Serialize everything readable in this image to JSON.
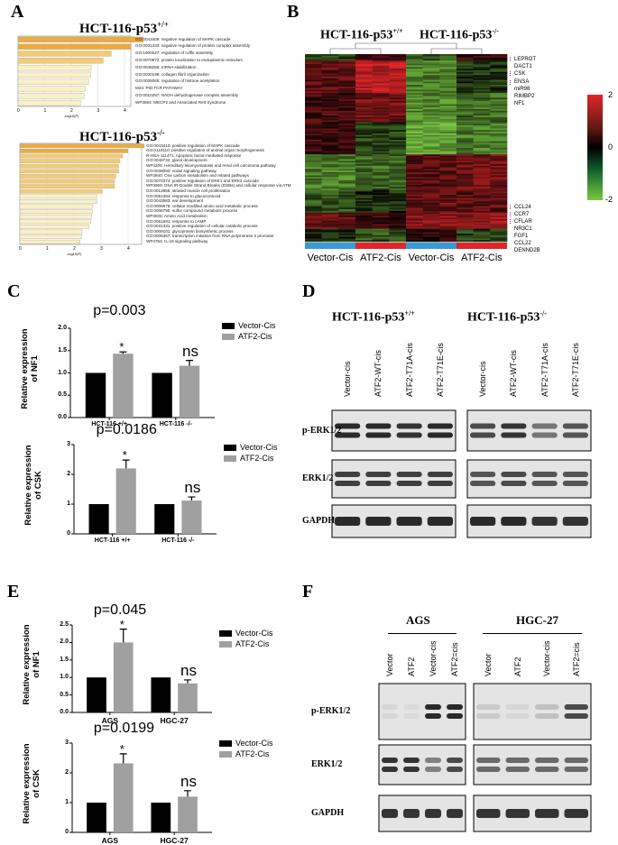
{
  "panel_labels": {
    "a": "A",
    "b": "B",
    "c": "C",
    "d": "D",
    "e": "E",
    "f": "F"
  },
  "panel_a": {
    "top": {
      "title": "HCT-116-p53",
      "title_sup": "+/+",
      "xlabel": "-log10(P)",
      "ticks": [
        "0",
        "1",
        "2",
        "3",
        "4"
      ],
      "terms": [
        {
          "label": "GO:0043409: negative regulation of MAPK cascade",
          "value": 4.7
        },
        {
          "label": "GO:0031333: negative regulation of protein complex assembly",
          "value": 4.25
        },
        {
          "label": "GO:1900027: regulation of ruffle assembly",
          "value": 3.5
        },
        {
          "label": "GO:0070972: protein localization to endoplasmic reticulum",
          "value": 3.2
        },
        {
          "label": "GO:0048255: mRNA stabilization",
          "value": 2.75
        },
        {
          "label": "GO:0030199: collagen fibril organization",
          "value": 2.72
        },
        {
          "label": "GO:0035065: regulation of histone acetylation",
          "value": 2.65
        },
        {
          "label": "M34: PID TCR PATHWAY",
          "value": 2.52
        },
        {
          "label": "GO:0010257: NADH dehydrogenase complex assembly",
          "value": 2.48
        },
        {
          "label": "WP3584: MECP2 and Associated Rett Syndrome",
          "value": 2.35
        }
      ]
    },
    "bottom": {
      "title": "HCT-116-p53",
      "title_sup": "-/-",
      "xlabel": "-log10(P)",
      "ticks": [
        "0",
        "1",
        "2",
        "3",
        "4"
      ],
      "terms": [
        {
          "label": "GO:0043410: positive regulation of MAPK cascade",
          "value": 4.6
        },
        {
          "label": "GO:0110110: positive regulation of animal organ morphogenesis",
          "value": 4.0
        },
        {
          "label": "R-HSA-111471: Apoptotic factor-mediated response",
          "value": 3.8
        },
        {
          "label": "GO:0048732: gland development",
          "value": 3.7
        },
        {
          "label": "WP4206: Hereditary leiomyomatosis and renal cell carcinoma pathway",
          "value": 3.65
        },
        {
          "label": "GO:0038092: nodal signaling pathway",
          "value": 3.65
        },
        {
          "label": "WP3940: One carbon metabolism and related pathways",
          "value": 3.55
        },
        {
          "label": "GO:0070374: positive regulation of ERK1 and ERK2 cascade",
          "value": 3.5
        },
        {
          "label": "WP3959: DNA IR-Double Strand Breaks (DSBs) and cellular response via ATM",
          "value": 3.5
        },
        {
          "label": "GO:0014855: striated muscle cell proliferation",
          "value": 3.05
        },
        {
          "label": "GO:0051384: response to glucocorticoid",
          "value": 2.85
        },
        {
          "label": "GO:0043583: ear development",
          "value": 2.85
        },
        {
          "label": "GO:0006575: cellular modified amino acid metabolic process",
          "value": 2.7
        },
        {
          "label": "GO:0006790: sulfur compound metabolic process",
          "value": 2.68
        },
        {
          "label": "WP3925: Amino Acid metabolism",
          "value": 2.65
        },
        {
          "label": "GO:0051591: response to cAMP",
          "value": 2.62
        },
        {
          "label": "GO:0031331: positive regulation of cellular catabolic process",
          "value": 2.55
        },
        {
          "label": "GO:0009101: glycoprotein biosynthetic process",
          "value": 2.3
        },
        {
          "label": "GO:0006367: transcription initiation from RNA polymerase II promoter",
          "value": 2.28
        },
        {
          "label": "WP4754: IL-18 signaling pathway",
          "value": 2.22
        }
      ]
    }
  },
  "panel_b": {
    "title_left": "HCT-116-p53",
    "title_left_sup": "+/+",
    "title_right": "HCT-116-p53",
    "title_right_sup": "-/-",
    "group_labels": [
      "Vector-Cis",
      "ATF2-Cis",
      "Vector-Cis",
      "ATF2-Cis"
    ],
    "group_colors": [
      "#3a9ad9",
      "#e0262a",
      "#3a9ad9",
      "#e0262a"
    ],
    "genes_top": [
      "LEPROT",
      "DACT1",
      "CSK",
      "ENSA",
      "miR98",
      "RIMBP2",
      "NF1"
    ],
    "genes_bottom": [
      "CCL24",
      "CCR7",
      "CFLAR",
      "NR3C1",
      "FGF1",
      "CCL22",
      "DENND2B"
    ],
    "colorbar_ticks": [
      "2",
      "0",
      "-2"
    ],
    "colors": {
      "high": "#e0262a",
      "mid": "#000000",
      "low": "#7ac943"
    },
    "row_blocks": [
      {
        "rows": 4,
        "values": [
          -0.6,
          0.6,
          -0.8,
          0.4
        ]
      },
      {
        "rows": 20,
        "values": [
          0.8,
          1.6,
          -1.2,
          -0.5
        ]
      },
      {
        "rows": 18,
        "values": [
          0.6,
          1.0,
          -1.3,
          -1.0
        ]
      },
      {
        "rows": 20,
        "values": [
          0.5,
          -0.6,
          -1.6,
          -1.2
        ]
      },
      {
        "rows": 22,
        "values": [
          -1.2,
          -1.0,
          0.8,
          1.0
        ]
      },
      {
        "rows": 14,
        "values": [
          -0.8,
          -0.4,
          0.9,
          0.8
        ]
      },
      {
        "rows": 10,
        "values": [
          0.9,
          0.5,
          1.2,
          1.3
        ]
      },
      {
        "rows": 8,
        "values": [
          -0.3,
          -0.8,
          0.3,
          -0.6
        ]
      }
    ]
  },
  "panel_c": {
    "legend": [
      "Vector-Cis",
      "ATF2-Cis"
    ],
    "charts": [
      {
        "ylabel_1": "Relative expression",
        "ylabel_2": "of NF1",
        "categories": [
          "HCT-116 +/+",
          "HCT-116 -/-"
        ],
        "yticks": [
          "0.0",
          "0.5",
          "1.0",
          "1.5",
          "2.0"
        ],
        "ymax": 2.0,
        "series": [
          {
            "name": "Vector-Cis",
            "values": [
              1.0,
              1.0
            ],
            "errors": [
              0,
              0
            ]
          },
          {
            "name": "ATF2-Cis",
            "values": [
              1.43,
              1.16
            ],
            "errors": [
              0.04,
              0.12
            ]
          }
        ],
        "pvalue": "p=0.003",
        "sig": [
          "*",
          "ns"
        ]
      },
      {
        "ylabel_1": "Relative expression",
        "ylabel_2": "of CSK",
        "categories": [
          "HCT-116 +/+",
          "HCT-116 -/-"
        ],
        "yticks": [
          "0",
          "1",
          "2",
          "3"
        ],
        "ymax": 3,
        "series": [
          {
            "name": "Vector-Cis",
            "values": [
              1.0,
              1.0
            ],
            "errors": [
              0,
              0
            ]
          },
          {
            "name": "ATF2-Cis",
            "values": [
              2.2,
              1.12
            ],
            "errors": [
              0.28,
              0.12
            ]
          }
        ],
        "pvalue": "p=0.0186",
        "sig": [
          "*",
          "ns"
        ]
      }
    ]
  },
  "panel_d": {
    "title_left": "HCT-116-p53",
    "title_left_sup": "+/+",
    "title_right": "HCT-116-p53",
    "title_right_sup": "-/-",
    "lanes": [
      "Vector-cis",
      "ATF2-WT-cis",
      "ATF2-T71A-cis",
      "ATF2-T71E-cis"
    ],
    "rows": [
      "p-ERK1/2",
      "ERK1/2",
      "GAPDH"
    ],
    "intensity_left": [
      [
        0.9,
        0.9,
        0.85,
        0.9
      ],
      [
        0.8,
        0.8,
        0.8,
        0.8
      ],
      [
        0.9,
        0.9,
        0.9,
        0.9
      ]
    ],
    "intensity_right": [
      [
        0.75,
        0.85,
        0.55,
        0.7
      ],
      [
        0.7,
        0.75,
        0.7,
        0.7
      ],
      [
        0.9,
        0.9,
        0.85,
        0.85
      ]
    ]
  },
  "panel_e": {
    "legend": [
      "Vector-Cis",
      "ATF2-Cis"
    ],
    "charts": [
      {
        "ylabel_1": "Relative expression",
        "ylabel_2": "of NF1",
        "categories": [
          "AGS",
          "HGC-27"
        ],
        "yticks": [
          "0.0",
          "0.5",
          "1.0",
          "1.5",
          "2.0",
          "2.5"
        ],
        "ymax": 2.5,
        "series": [
          {
            "name": "Vector-Cis",
            "values": [
              1.0,
              1.0
            ],
            "errors": [
              0,
              0
            ]
          },
          {
            "name": "ATF2-Cis",
            "values": [
              2.0,
              0.83
            ],
            "errors": [
              0.38,
              0.1
            ]
          }
        ],
        "pvalue": "p=0.045",
        "sig": [
          "*",
          "ns"
        ]
      },
      {
        "ylabel_1": "Relative expression",
        "ylabel_2": "of CSK",
        "categories": [
          "AGS",
          "HGC-27"
        ],
        "yticks": [
          "0",
          "1",
          "2",
          "3"
        ],
        "ymax": 3,
        "series": [
          {
            "name": "Vector-Cis",
            "values": [
              1.0,
              1.0
            ],
            "errors": [
              0,
              0
            ]
          },
          {
            "name": "ATF2-Cis",
            "values": [
              2.32,
              1.2
            ],
            "errors": [
              0.32,
              0.2
            ]
          }
        ],
        "pvalue": "p=0.0199",
        "sig": [
          "*",
          "ns"
        ]
      }
    ]
  },
  "panel_f": {
    "title_left": "AGS",
    "title_right": "HGC-27",
    "lanes": [
      "Vector",
      "ATF2",
      "Vector-cis",
      "ATF2=cis"
    ],
    "rows": [
      "p-ERK1/2",
      "ERK1/2",
      "GAPDH"
    ],
    "intensity_left": [
      [
        0.1,
        0.08,
        0.9,
        0.9
      ],
      [
        0.85,
        0.85,
        0.5,
        0.75
      ],
      [
        0.85,
        0.85,
        0.85,
        0.85
      ]
    ],
    "intensity_right": [
      [
        0.15,
        0.1,
        0.2,
        0.75
      ],
      [
        0.6,
        0.6,
        0.6,
        0.6
      ],
      [
        0.85,
        0.85,
        0.85,
        0.85
      ]
    ]
  }
}
